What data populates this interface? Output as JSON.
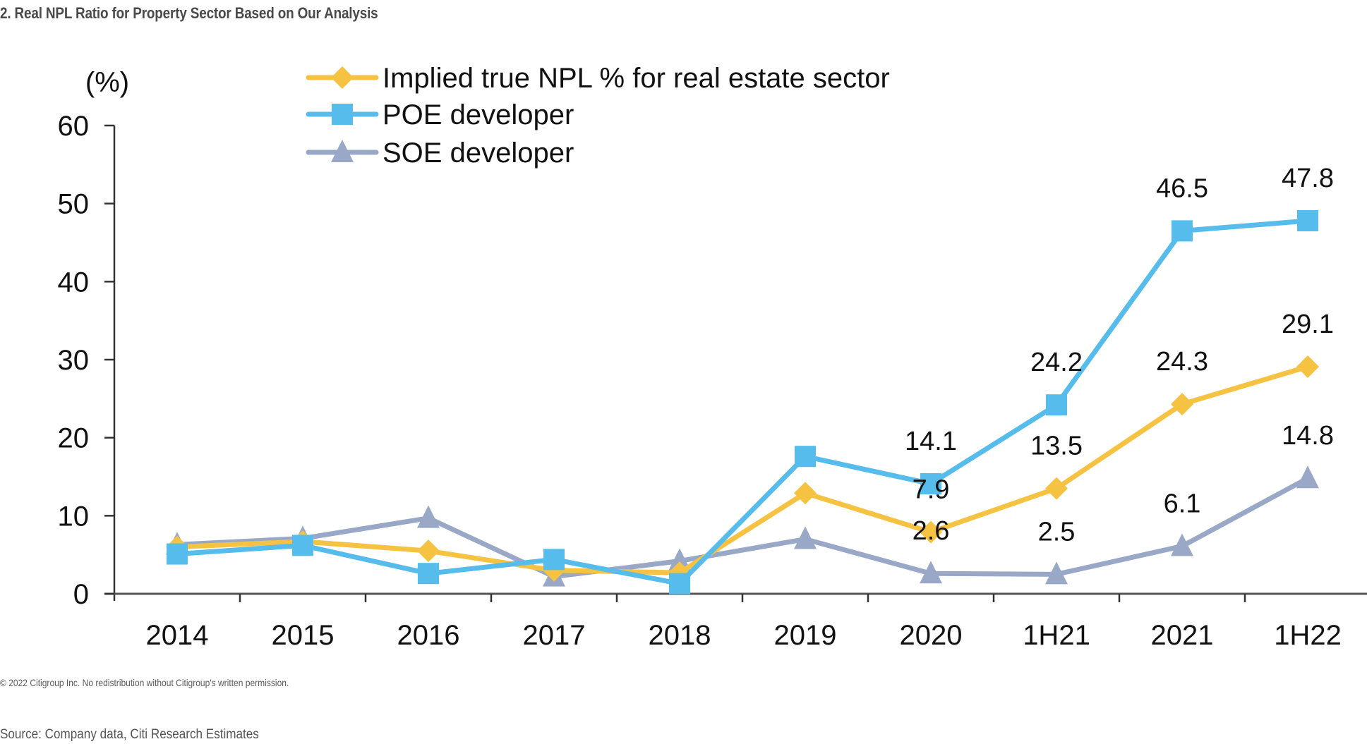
{
  "header": {
    "title": "2. Real NPL Ratio for Property Sector Based on Our Analysis"
  },
  "footer": {
    "copyright": "© 2022 Citigroup Inc. No redistribution without Citigroup's written permission.",
    "source": "Source: Company data, Citi Research Estimates"
  },
  "chart_data": {
    "type": "line",
    "title": "Real NPL Ratio for Property Sector Based on Our Analysis",
    "xlabel": "",
    "ylabel": "(%)",
    "ylim": [
      0,
      60
    ],
    "yticks": [
      "0",
      "10",
      "20",
      "30",
      "40",
      "50",
      "60"
    ],
    "ytick_values": [
      0,
      10,
      20,
      30,
      40,
      50,
      60
    ],
    "categories": [
      "2014",
      "2015",
      "2016",
      "2017",
      "2018",
      "2019",
      "2020",
      "1H21",
      "2021",
      "1H22"
    ],
    "grid": false,
    "legend_position": "top-center",
    "series": [
      {
        "name": "Implied true NPL % for real estate sector",
        "color": "#F5C242",
        "marker": "diamond",
        "values": [
          6.0,
          6.7,
          5.5,
          3.0,
          2.7,
          12.9,
          7.9,
          13.5,
          24.3,
          29.1
        ],
        "labels": [
          null,
          null,
          null,
          null,
          null,
          null,
          "7.9",
          "13.5",
          "24.3",
          "29.1"
        ]
      },
      {
        "name": "POE developer",
        "color": "#56BCEB",
        "marker": "square",
        "values": [
          5.1,
          6.2,
          2.6,
          4.4,
          1.3,
          17.6,
          14.1,
          24.2,
          46.5,
          47.8
        ],
        "labels": [
          null,
          null,
          null,
          null,
          null,
          null,
          "14.1",
          "24.2",
          "46.5",
          "47.8"
        ]
      },
      {
        "name": "SOE developer",
        "color": "#9AA8C8",
        "marker": "triangle",
        "values": [
          6.3,
          7.1,
          9.7,
          2.2,
          4.2,
          7.0,
          2.6,
          2.5,
          6.1,
          14.8
        ],
        "labels": [
          null,
          null,
          null,
          null,
          null,
          null,
          "2.6",
          "2.5",
          "6.1",
          "14.8"
        ]
      }
    ]
  }
}
